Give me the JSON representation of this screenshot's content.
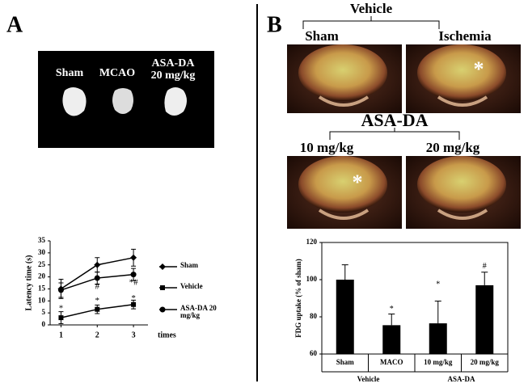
{
  "panels": {
    "a": {
      "letter": "A",
      "image_labels": [
        "Sham",
        "MCAO",
        "ASA-DA 20 mg/kg"
      ]
    },
    "b": {
      "letter": "B",
      "top_group": "Vehicle",
      "top_labels": [
        "Sham",
        "Ischemia"
      ],
      "bottom_group": "ASA-DA",
      "bottom_labels": [
        "10 mg/kg",
        "20 mg/kg"
      ],
      "image_marks": [
        "*",
        "*"
      ]
    }
  },
  "chart_data": [
    {
      "type": "line",
      "xlabel": "times",
      "ylabel": "Latency time (s)",
      "x": [
        1,
        2,
        3
      ],
      "xlim": [
        0.7,
        3.4
      ],
      "xticks": [
        1,
        2,
        3
      ],
      "ylim": [
        0,
        35
      ],
      "yticks": [
        0,
        5,
        10,
        15,
        20,
        25,
        30,
        35
      ],
      "series": [
        {
          "name": "Sham",
          "color": "#000000",
          "marker": "diamond",
          "values": [
            15,
            25,
            28
          ],
          "errors": [
            4,
            3,
            3.5
          ]
        },
        {
          "name": "Vehicle",
          "color": "#000000",
          "marker": "square",
          "values": [
            3,
            6.5,
            8.5
          ],
          "errors": [
            2.5,
            1.8,
            1.8
          ]
        },
        {
          "name": "ASA-DA 20 mg/kg",
          "color": "#000000",
          "marker": "circle",
          "values": [
            14.5,
            19.5,
            21
          ],
          "errors": [
            3,
            2.5,
            2.5
          ]
        }
      ],
      "annotations": [
        {
          "text": "*",
          "x": 1,
          "y": 6.7
        },
        {
          "text": "#",
          "x": 2,
          "y": 15.8
        },
        {
          "text": "*",
          "x": 2,
          "y": 10
        },
        {
          "text": "*#",
          "x": 3,
          "y": 17.5
        },
        {
          "text": "*",
          "x": 3,
          "y": 11
        }
      ]
    },
    {
      "type": "bar",
      "ylabel": "FDG uptake (% of sham)",
      "categories": [
        "Sham",
        "MACO",
        "10 mg/kg",
        "20 mg/kg"
      ],
      "values": [
        100,
        75.5,
        76.5,
        97
      ],
      "errors": [
        8,
        6,
        12,
        7
      ],
      "color": "#000000",
      "ylim": [
        60,
        120
      ],
      "yticks": [
        60,
        80,
        100,
        120
      ],
      "groups": [
        {
          "label": "Vehicle",
          "categories": [
            0,
            1
          ]
        },
        {
          "label": "ASA-DA",
          "categories": [
            2,
            3
          ]
        }
      ],
      "annotations": [
        {
          "text": "*",
          "x": 1,
          "y": 84
        },
        {
          "text": "*",
          "x": 2,
          "y": 97.4
        },
        {
          "text": "#",
          "x": 3,
          "y": 107
        }
      ]
    }
  ]
}
